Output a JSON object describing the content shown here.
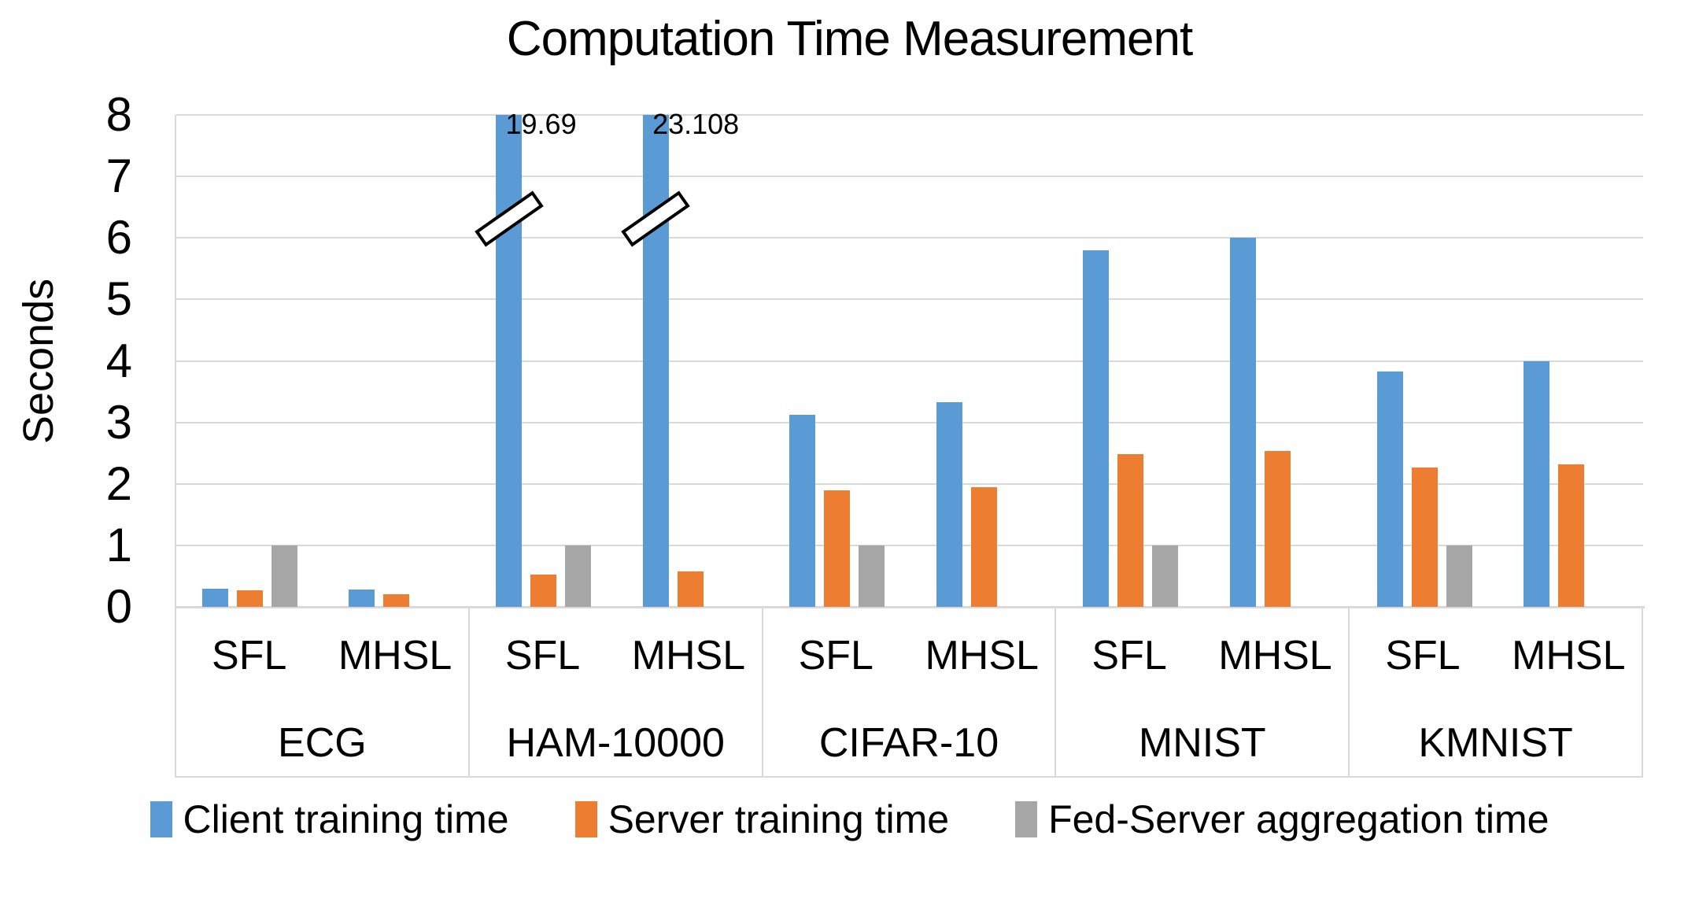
{
  "chart_data": {
    "type": "bar",
    "title": "Computation Time Measurement",
    "ylabel": "Seconds",
    "ylim": [
      0,
      8
    ],
    "yticks": [
      0,
      1,
      2,
      3,
      4,
      5,
      6,
      7,
      8
    ],
    "grid": true,
    "legend_position": "bottom",
    "axis_note": "y-axis broken at 8; HAM-10000 client bars are clipped with break marks and labeled with true values",
    "series": [
      {
        "name": "Client training time",
        "color": "#5B9BD5"
      },
      {
        "name": "Server training time",
        "color": "#ED7D31"
      },
      {
        "name": "Fed-Server aggregation time",
        "color": "#A6A6A6"
      }
    ],
    "groups": [
      {
        "dataset": "ECG",
        "clusters": [
          {
            "method": "SFL",
            "values": [
              0.3,
              0.27,
              1.0
            ]
          },
          {
            "method": "MHSL",
            "values": [
              0.28,
              0.2,
              null
            ]
          }
        ]
      },
      {
        "dataset": "HAM-10000",
        "clusters": [
          {
            "method": "SFL",
            "values": [
              19.69,
              0.52,
              1.0
            ],
            "broken_series": 0,
            "annotation": "19.69"
          },
          {
            "method": "MHSL",
            "values": [
              23.108,
              0.57,
              null
            ],
            "broken_series": 0,
            "annotation": "23.108"
          }
        ]
      },
      {
        "dataset": "CIFAR-10",
        "clusters": [
          {
            "method": "SFL",
            "values": [
              3.12,
              1.9,
              1.0
            ]
          },
          {
            "method": "MHSL",
            "values": [
              3.33,
              1.95,
              null
            ]
          }
        ]
      },
      {
        "dataset": "MNIST",
        "clusters": [
          {
            "method": "SFL",
            "values": [
              5.8,
              2.48,
              1.0
            ]
          },
          {
            "method": "MHSL",
            "values": [
              6.0,
              2.53,
              null
            ]
          }
        ]
      },
      {
        "dataset": "KMNIST",
        "clusters": [
          {
            "method": "SFL",
            "values": [
              3.83,
              2.27,
              1.0
            ]
          },
          {
            "method": "MHSL",
            "values": [
              4.0,
              2.32,
              null
            ]
          }
        ]
      }
    ]
  },
  "colors": {
    "gridline": "#D9D9D9",
    "text": "#000000",
    "background": "#FFFFFF"
  }
}
